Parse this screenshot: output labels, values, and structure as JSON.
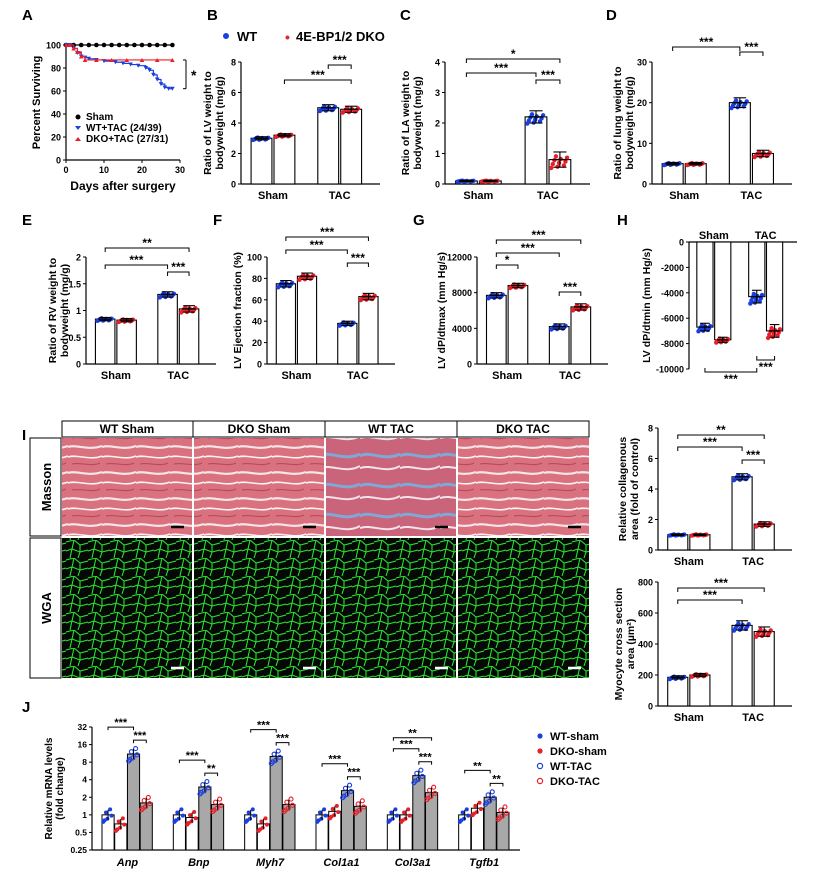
{
  "colors": {
    "wt": "#1a3fe0",
    "dko": "#e8202a",
    "black": "#000000",
    "gray": "#a8a8a8"
  },
  "top_legend": {
    "wt": "WT",
    "dko": "4E-BP1/2 DKO"
  },
  "images": {
    "columns": [
      "WT Sham",
      "DKO Sham",
      "WT TAC",
      "DKO TAC"
    ],
    "rows": [
      "Masson",
      "WGA"
    ]
  },
  "chart_data": [
    {
      "panel": "A",
      "type": "line",
      "xlabel": "Days after surgery",
      "ylabel": "Percent Surviving",
      "ylim": [
        0,
        100
      ],
      "xlim": [
        0,
        30
      ],
      "yticks": [
        0,
        20,
        40,
        60,
        80,
        100
      ],
      "xticks": [
        0,
        10,
        20,
        30
      ],
      "annotation": "*",
      "series": [
        {
          "name": "Sham",
          "color": "#000000",
          "points": [
            [
              0,
              100
            ],
            [
              2,
              100
            ],
            [
              4,
              100
            ],
            [
              6,
              100
            ],
            [
              8,
              100
            ],
            [
              10,
              100
            ],
            [
              12,
              100
            ],
            [
              14,
              100
            ],
            [
              16,
              100
            ],
            [
              18,
              100
            ],
            [
              20,
              100
            ],
            [
              22,
              100
            ],
            [
              24,
              100
            ],
            [
              26,
              100
            ],
            [
              28,
              100
            ]
          ]
        },
        {
          "name": "WT+TAC (24/39)",
          "color": "#1a3fe0",
          "points": [
            [
              0,
              100
            ],
            [
              1,
              100
            ],
            [
              2,
              97
            ],
            [
              3,
              93
            ],
            [
              4,
              90
            ],
            [
              5,
              89
            ],
            [
              6,
              88
            ],
            [
              8,
              87
            ],
            [
              10,
              86
            ],
            [
              13,
              85
            ],
            [
              15,
              84
            ],
            [
              17,
              83
            ],
            [
              19,
              82
            ],
            [
              21,
              80
            ],
            [
              22,
              78
            ],
            [
              23,
              74
            ],
            [
              24,
              70
            ],
            [
              25,
              66
            ],
            [
              26,
              63
            ],
            [
              27,
              62
            ],
            [
              28,
              62
            ]
          ]
        },
        {
          "name": "DKO+TAC (27/31)",
          "color": "#e8202a",
          "points": [
            [
              0,
              100
            ],
            [
              1,
              100
            ],
            [
              2,
              97
            ],
            [
              3,
              94
            ],
            [
              4,
              90
            ],
            [
              5,
              87
            ],
            [
              8,
              87
            ],
            [
              12,
              87
            ],
            [
              16,
              87
            ],
            [
              20,
              87
            ],
            [
              24,
              87
            ],
            [
              28,
              87
            ]
          ]
        }
      ]
    },
    {
      "panel": "B",
      "type": "bar",
      "ylabel": "Ratio of LV weight to bodyweight (mg/g)",
      "ylim": [
        0,
        8
      ],
      "yticks": [
        0,
        2,
        4,
        6,
        8
      ],
      "groups": [
        "Sham",
        "TAC"
      ],
      "series": [
        {
          "name": "WT",
          "values": [
            3.0,
            5.0
          ],
          "err": [
            0.1,
            0.2
          ]
        },
        {
          "name": "4E-BP1/2 DKO",
          "values": [
            3.2,
            4.9
          ],
          "err": [
            0.1,
            0.2
          ]
        }
      ],
      "significance": [
        "***",
        "***"
      ]
    },
    {
      "panel": "C",
      "type": "bar",
      "ylabel": "Ratio of LA weight to bodyweight (mg/g)",
      "ylim": [
        0,
        4
      ],
      "yticks": [
        0,
        1,
        2,
        3,
        4
      ],
      "groups": [
        "Sham",
        "TAC"
      ],
      "series": [
        {
          "name": "WT",
          "values": [
            0.1,
            2.2
          ],
          "err": [
            0.02,
            0.2
          ]
        },
        {
          "name": "4E-BP1/2 DKO",
          "values": [
            0.1,
            0.8
          ],
          "err": [
            0.02,
            0.25
          ]
        }
      ],
      "significance": [
        "*",
        "***",
        "***"
      ]
    },
    {
      "panel": "D",
      "type": "bar",
      "ylabel": "Ratio of lung weight to bodyweight (mg/g)",
      "ylim": [
        0,
        30
      ],
      "yticks": [
        0,
        10,
        20,
        30
      ],
      "groups": [
        "Sham",
        "TAC"
      ],
      "series": [
        {
          "name": "WT",
          "values": [
            5,
            20
          ],
          "err": [
            0.3,
            1.2
          ]
        },
        {
          "name": "4E-BP1/2 DKO",
          "values": [
            5,
            7.5
          ],
          "err": [
            0.3,
            0.8
          ]
        }
      ],
      "significance": [
        "***",
        "***"
      ]
    },
    {
      "panel": "E",
      "type": "bar",
      "ylabel": "Ratio of RV weight to bodyweight (mg/g)",
      "ylim": [
        0,
        2.0
      ],
      "yticks": [
        0,
        0.5,
        1.0,
        1.5,
        2.0
      ],
      "groups": [
        "Sham",
        "TAC"
      ],
      "series": [
        {
          "name": "WT",
          "values": [
            0.84,
            1.3
          ],
          "err": [
            0.03,
            0.05
          ]
        },
        {
          "name": "4E-BP1/2 DKO",
          "values": [
            0.82,
            1.03
          ],
          "err": [
            0.03,
            0.06
          ]
        }
      ],
      "significance": [
        "**",
        "***",
        "***"
      ]
    },
    {
      "panel": "F",
      "type": "bar",
      "ylabel": "LV Ejection fraction (%)",
      "ylim": [
        0,
        100
      ],
      "yticks": [
        0,
        20,
        40,
        60,
        80,
        100
      ],
      "groups": [
        "Sham",
        "TAC"
      ],
      "series": [
        {
          "name": "WT",
          "values": [
            75,
            38
          ],
          "err": [
            3,
            2
          ]
        },
        {
          "name": "4E-BP1/2 DKO",
          "values": [
            82,
            63
          ],
          "err": [
            3,
            3
          ]
        }
      ],
      "significance": [
        "***",
        "***",
        "***"
      ]
    },
    {
      "panel": "G",
      "type": "bar",
      "ylabel": "LV dP/dtmax (mm Hg/s)",
      "ylim": [
        0,
        12000
      ],
      "yticks": [
        0,
        4000,
        8000,
        12000
      ],
      "groups": [
        "Sham",
        "TAC"
      ],
      "series": [
        {
          "name": "WT",
          "values": [
            7700,
            4200
          ],
          "err": [
            300,
            300
          ]
        },
        {
          "name": "4E-BP1/2 DKO",
          "values": [
            8800,
            6400
          ],
          "err": [
            250,
            350
          ]
        }
      ],
      "significance": [
        "*",
        "***",
        "***",
        "***"
      ]
    },
    {
      "panel": "H",
      "type": "bar",
      "ylabel": "LV dP/dtmin (mm Hg/s)",
      "ylim": [
        -10000,
        0
      ],
      "yticks": [
        -10000,
        -8000,
        -6000,
        -4000,
        -2000,
        0
      ],
      "groups": [
        "Sham",
        "TAC"
      ],
      "series": [
        {
          "name": "WT",
          "values": [
            -6700,
            -4300
          ],
          "err": [
            300,
            500
          ]
        },
        {
          "name": "4E-BP1/2 DKO",
          "values": [
            -7700,
            -7000
          ],
          "err": [
            200,
            500
          ]
        }
      ],
      "significance": [
        "***",
        "***"
      ]
    },
    {
      "panel": "I-collagen",
      "type": "bar",
      "ylabel": "Relative collagenous area (fold of control)",
      "ylim": [
        0,
        8
      ],
      "yticks": [
        0,
        2,
        4,
        6,
        8
      ],
      "groups": [
        "Sham",
        "TAC"
      ],
      "series": [
        {
          "name": "WT",
          "values": [
            1.0,
            4.8
          ],
          "err": [
            0.05,
            0.2
          ]
        },
        {
          "name": "4E-BP1/2 DKO",
          "values": [
            1.0,
            1.7
          ],
          "err": [
            0.05,
            0.15
          ]
        }
      ],
      "significance": [
        "**",
        "***",
        "***"
      ]
    },
    {
      "panel": "I-myocyte",
      "type": "bar",
      "ylabel": "Myocyte cross section area (µm²)",
      "ylim": [
        0,
        800
      ],
      "yticks": [
        0,
        200,
        400,
        600,
        800
      ],
      "groups": [
        "Sham",
        "TAC"
      ],
      "series": [
        {
          "name": "WT",
          "values": [
            185,
            520
          ],
          "err": [
            10,
            30
          ]
        },
        {
          "name": "4E-BP1/2 DKO",
          "values": [
            200,
            480
          ],
          "err": [
            10,
            30
          ]
        }
      ],
      "significance": [
        "***",
        "***"
      ]
    },
    {
      "panel": "J",
      "type": "bar",
      "scale": "log2",
      "ylabel": "Relative mRNA levels (fold change)",
      "ylim": [
        0.25,
        32
      ],
      "yticks": [
        0.25,
        0.5,
        1,
        2,
        4,
        8,
        16,
        32
      ],
      "ytick_labels": [
        "0.25",
        "0.5",
        "1",
        "2",
        "4",
        "8",
        "16",
        "32"
      ],
      "categories": [
        "Anp",
        "Bnp",
        "Myh7",
        "Col1a1",
        "Col3a1",
        "Tgfb1"
      ],
      "series": [
        {
          "name": "WT-sham",
          "values": [
            1.0,
            1.0,
            1.0,
            1.0,
            1.0,
            1.0
          ]
        },
        {
          "name": "DKO-sham",
          "values": [
            0.7,
            0.9,
            0.7,
            1.15,
            1.0,
            1.3
          ]
        },
        {
          "name": "WT-TAC",
          "values": [
            11,
            3.0,
            10,
            2.6,
            4.7,
            2.0
          ]
        },
        {
          "name": "DKO-TAC",
          "values": [
            1.6,
            1.5,
            1.5,
            1.4,
            2.4,
            1.1
          ]
        }
      ],
      "significance": [
        [
          "***",
          "***"
        ],
        [
          "***",
          "**"
        ],
        [
          "***",
          "***"
        ],
        [
          "***",
          "***"
        ],
        [
          "***",
          "**",
          "***"
        ],
        [
          "**",
          "**"
        ]
      ]
    }
  ]
}
